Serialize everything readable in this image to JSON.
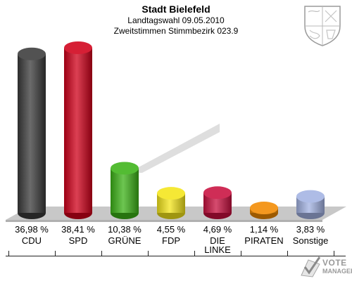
{
  "header": {
    "title": "Stadt Bielefeld",
    "subtitle1": "Landtagswahl 09.05.2010",
    "subtitle2": "Zweitstimmen Stimmbezirk 023.9"
  },
  "branding": {
    "name_line1": "VOTE",
    "name_line2": "MANAGER"
  },
  "chart_data": {
    "type": "bar",
    "title": "Stadt Bielefeld",
    "categories": [
      "CDU",
      "SPD",
      "GRÜNE",
      "FDP",
      "DIE LINKE",
      "PIRATEN",
      "Sonstige"
    ],
    "category_lines": [
      [
        "CDU"
      ],
      [
        "SPD"
      ],
      [
        "GRÜNE"
      ],
      [
        "FDP"
      ],
      [
        "DIE",
        "LINKE"
      ],
      [
        "PIRATEN"
      ],
      [
        "Sonstige"
      ]
    ],
    "values": [
      36.98,
      38.41,
      10.38,
      4.55,
      4.69,
      1.14,
      3.83
    ],
    "value_labels": [
      "36,98 %",
      "38,41 %",
      "10,38 %",
      "4,55 %",
      "4,69 %",
      "1,14 %",
      "3,83 %"
    ],
    "colors": [
      "#3a3a3a",
      "#d0001a",
      "#3cb317",
      "#f4e51a",
      "#c8103f",
      "#f28a00",
      "#a3b3e3"
    ],
    "ylim": [
      0,
      40
    ],
    "grid": false,
    "legend": "none"
  }
}
